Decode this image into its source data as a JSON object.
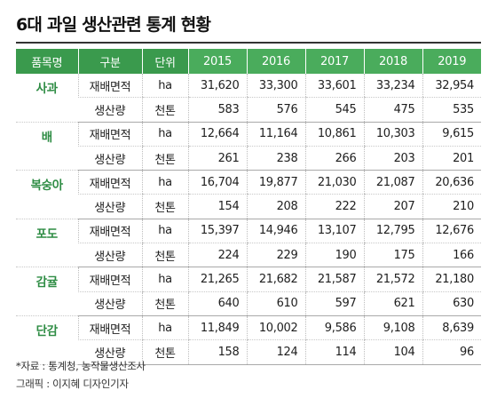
{
  "title": "6대 과일 생산관련 통계 현황",
  "columns": [
    "품목명",
    "구분",
    "단위",
    "2015",
    "2016",
    "2017",
    "2018",
    "2019"
  ],
  "fruits": [
    {
      "name": "사과",
      "rows": [
        {
          "item": "재배면적",
          "unit": "ha",
          "values": [
            "31,620",
            "33,300",
            "33,601",
            "33,234",
            "32,954"
          ]
        },
        {
          "item": "생산량",
          "unit": "천톤",
          "values": [
            "583",
            "576",
            "545",
            "475",
            "535"
          ]
        }
      ]
    },
    {
      "name": "배",
      "rows": [
        {
          "item": "재배면적",
          "unit": "ha",
          "values": [
            "12,664",
            "11,164",
            "10,861",
            "10,303",
            "9,615"
          ]
        },
        {
          "item": "생산량",
          "unit": "천톤",
          "values": [
            "261",
            "238",
            "266",
            "203",
            "201"
          ]
        }
      ]
    },
    {
      "name": "복숭아",
      "rows": [
        {
          "item": "재배면적",
          "unit": "ha",
          "values": [
            "16,704",
            "19,877",
            "21,030",
            "21,087",
            "20,636"
          ]
        },
        {
          "item": "생산량",
          "unit": "천톤",
          "values": [
            "154",
            "208",
            "222",
            "207",
            "210"
          ]
        }
      ]
    },
    {
      "name": "포도",
      "rows": [
        {
          "item": "재배면적",
          "unit": "ha",
          "values": [
            "15,397",
            "14,946",
            "13,107",
            "12,795",
            "12,676"
          ]
        },
        {
          "item": "생산량",
          "unit": "천톤",
          "values": [
            "224",
            "229",
            "190",
            "175",
            "166"
          ]
        }
      ]
    },
    {
      "name": "감귤",
      "rows": [
        {
          "item": "재배면적",
          "unit": "ha",
          "values": [
            "21,265",
            "21,682",
            "21,587",
            "21,572",
            "21,180"
          ]
        },
        {
          "item": "생산량",
          "unit": "천톤",
          "values": [
            "640",
            "610",
            "597",
            "621",
            "630"
          ]
        }
      ]
    },
    {
      "name": "단감",
      "rows": [
        {
          "item": "재배면적",
          "unit": "ha",
          "values": [
            "11,849",
            "10,002",
            "9,586",
            "9,108",
            "8,639"
          ]
        },
        {
          "item": "생산량",
          "unit": "천톤",
          "values": [
            "158",
            "124",
            "114",
            "104",
            "96"
          ]
        }
      ]
    }
  ],
  "source": "*자료 : 통계청, 농작물생산조사",
  "credit": "그래픽 : 이지혜 디자인기자",
  "colors": {
    "header_green": "#3a9a4d",
    "year_green": "#4aac5c",
    "fruit_text": "#2e8c44"
  }
}
